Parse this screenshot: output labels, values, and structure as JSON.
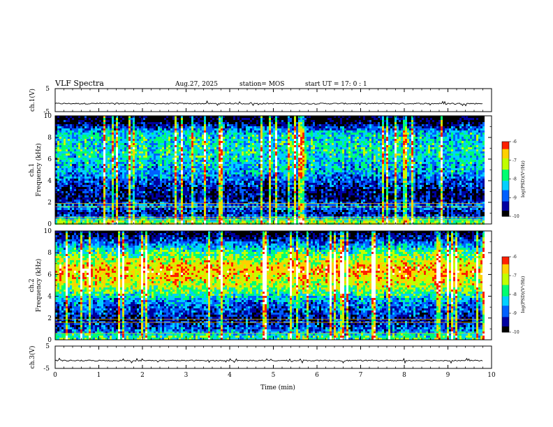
{
  "header": {
    "title": "VLF Spectra",
    "date": "Aug.27, 2025",
    "station": "station= MOS",
    "start": "start  UT =   17: 0  : 1"
  },
  "colors": {
    "background_low": "#000010",
    "colormap": [
      "#000000",
      "#0000a0",
      "#0060ff",
      "#00d0ff",
      "#00ff70",
      "#c0ff00",
      "#ffd000",
      "#ff2000",
      "#ffffff"
    ],
    "trace": "#000000"
  },
  "chart_data": [
    {
      "type": "line",
      "name": "ch1-waveform",
      "ylabel": "ch.1(V)",
      "ylim": [
        -5,
        5
      ],
      "yticks": [
        "5",
        "-5"
      ],
      "baseline": -1.5,
      "description_level": "trace near -1.5 V with small spikes"
    },
    {
      "type": "heatmap",
      "name": "ch1-spectrogram",
      "ylabel_top": "ch.1",
      "ylabel": "Frequency (kHz)",
      "ylim": [
        0,
        10
      ],
      "yticks": [
        "0",
        "2",
        "4",
        "6",
        "8",
        "10"
      ],
      "xlim": [
        0,
        10
      ],
      "data_end_min": 9.8,
      "colorbar": {
        "label": "log(PSD)(V²/Hz)",
        "range": [
          -10,
          -6
        ],
        "ticks": [
          "-6",
          "-7",
          "-8",
          "-9",
          "-10"
        ]
      },
      "band_profile": [
        {
          "f": 0.3,
          "level": 0.65
        },
        {
          "f": 1.0,
          "level": 0.15
        },
        {
          "f": 1.7,
          "level": 0.35
        },
        {
          "f": 2.5,
          "level": 0.12
        },
        {
          "f": 3.5,
          "level": 0.2
        },
        {
          "f": 5.0,
          "level": 0.42
        },
        {
          "f": 7.0,
          "level": 0.5
        },
        {
          "f": 8.5,
          "level": 0.45
        },
        {
          "f": 9.6,
          "level": 0.05
        }
      ],
      "lines_khz": [
        0.4,
        0.6,
        1.6,
        1.9
      ]
    },
    {
      "type": "heatmap",
      "name": "ch2-spectrogram",
      "ylabel_top": "ch.2",
      "ylabel": "Frequency (kHz)",
      "ylim": [
        0,
        10
      ],
      "yticks": [
        "0",
        "2",
        "4",
        "6",
        "8",
        "10"
      ],
      "xlim": [
        0,
        10
      ],
      "data_end_min": 9.8,
      "colorbar": {
        "label": "log(PSD)(V²/Hz)",
        "range": [
          -10,
          -6
        ],
        "ticks": [
          "-6",
          "-7",
          "-8",
          "-9",
          "-10"
        ]
      },
      "band_profile": [
        {
          "f": 0.4,
          "level": 0.55
        },
        {
          "f": 1.0,
          "level": 0.3
        },
        {
          "f": 2.0,
          "level": 0.18
        },
        {
          "f": 3.5,
          "level": 0.35
        },
        {
          "f": 5.0,
          "level": 0.7
        },
        {
          "f": 6.5,
          "level": 0.85
        },
        {
          "f": 8.0,
          "level": 0.6
        },
        {
          "f": 9.3,
          "level": 0.25
        },
        {
          "f": 9.9,
          "level": 0.05
        }
      ],
      "lines_khz": [
        0.6,
        1.6,
        1.9
      ]
    },
    {
      "type": "line",
      "name": "ch3-waveform",
      "ylabel": "ch.3(V)",
      "ylim": [
        -5,
        5
      ],
      "yticks": [
        "5",
        "-5"
      ],
      "baseline": -1.5
    }
  ],
  "xaxis": {
    "label": "Time  (min)",
    "range": [
      0,
      10
    ],
    "ticks": [
      "0",
      "1",
      "2",
      "3",
      "4",
      "5",
      "6",
      "7",
      "8",
      "9",
      "10"
    ]
  }
}
